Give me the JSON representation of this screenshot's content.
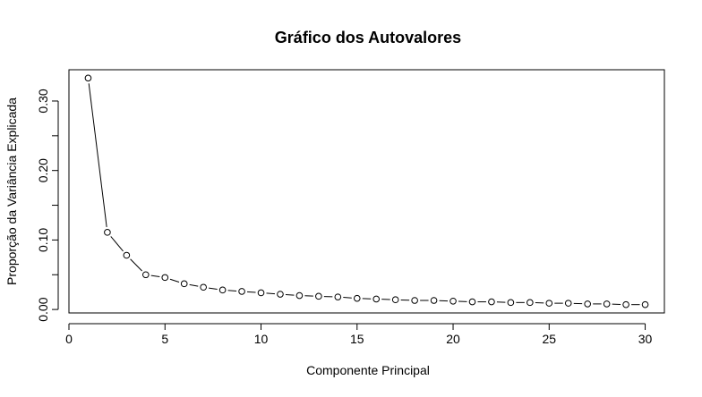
{
  "chart_data": {
    "type": "line",
    "title": "Gráfico dos Autovalores",
    "xlabel": "Componente Principal",
    "ylabel": "Proporção da Variância Explicada",
    "xlim": [
      0,
      31
    ],
    "ylim": [
      -0.005,
      0.345
    ],
    "xticks": [
      "0",
      "5",
      "10",
      "15",
      "20",
      "25",
      "30"
    ],
    "yticks": [
      "0.00",
      "0.10",
      "0.20",
      "0.30"
    ],
    "grid": false,
    "legend": "none",
    "series": [
      {
        "x": [
          1,
          2,
          3,
          4,
          5,
          6,
          7,
          8,
          9,
          10,
          11,
          12,
          13,
          14,
          15,
          16,
          17,
          18,
          19,
          20,
          21,
          22,
          23,
          24,
          25,
          26,
          27,
          28,
          29,
          30
        ],
        "values": [
          0.333,
          0.111,
          0.078,
          0.05,
          0.046,
          0.037,
          0.032,
          0.028,
          0.026,
          0.024,
          0.022,
          0.02,
          0.019,
          0.018,
          0.016,
          0.015,
          0.014,
          0.013,
          0.013,
          0.012,
          0.011,
          0.011,
          0.01,
          0.01,
          0.009,
          0.009,
          0.008,
          0.008,
          0.007,
          0.007
        ]
      }
    ],
    "colors": {
      "line": "#000000",
      "marker_fill": "#ffffff",
      "marker_stroke": "#000000"
    }
  }
}
